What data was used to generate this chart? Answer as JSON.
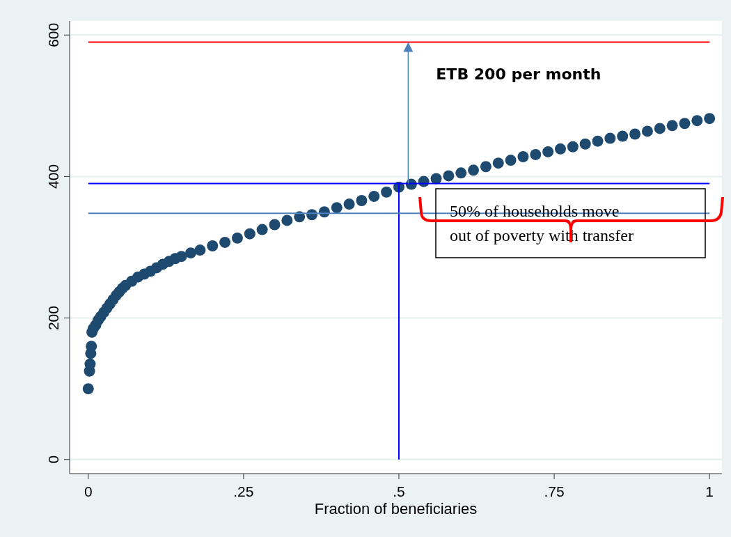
{
  "chart_data": {
    "type": "scatter",
    "xlabel": "Fraction of beneficiaries",
    "x": [
      0,
      0.002,
      0.003,
      0.004,
      0.005,
      0.006,
      0.008,
      0.012,
      0.016,
      0.02,
      0.025,
      0.03,
      0.035,
      0.04,
      0.045,
      0.05,
      0.055,
      0.06,
      0.07,
      0.08,
      0.09,
      0.1,
      0.11,
      0.12,
      0.13,
      0.14,
      0.15,
      0.165,
      0.18,
      0.2,
      0.22,
      0.24,
      0.26,
      0.28,
      0.3,
      0.32,
      0.34,
      0.36,
      0.38,
      0.4,
      0.42,
      0.44,
      0.46,
      0.48,
      0.5,
      0.52,
      0.54,
      0.56,
      0.58,
      0.6,
      0.62,
      0.64,
      0.66,
      0.68,
      0.7,
      0.72,
      0.74,
      0.76,
      0.78,
      0.8,
      0.82,
      0.84,
      0.86,
      0.88,
      0.9,
      0.92,
      0.94,
      0.96,
      0.98,
      1
    ],
    "series": [
      {
        "color": "#1f4a70",
        "values": [
          100,
          125,
          135,
          150,
          160,
          180,
          185,
          190,
          197,
          202,
          208,
          214,
          220,
          226,
          232,
          237,
          242,
          246,
          252,
          258,
          262,
          266,
          271,
          276,
          280,
          284,
          287,
          292,
          296,
          302,
          307,
          313,
          319,
          325,
          332,
          338,
          343,
          346,
          350,
          356,
          361,
          366,
          372,
          378,
          385,
          389,
          393,
          397,
          401,
          405,
          409,
          414,
          419,
          423,
          428,
          431,
          435,
          439,
          442,
          446,
          450,
          454,
          457,
          460,
          464,
          468,
          472,
          475,
          479,
          482
        ]
      }
    ],
    "marker": "circle",
    "xlim": [
      -0.03,
      1.02
    ],
    "ylim": [
      -20,
      620
    ],
    "xticks": [
      0,
      {
        "value": 0.25,
        "label": ".25"
      },
      {
        "value": 0.5,
        "label": ".5"
      },
      {
        "value": 0.75,
        "label": ".75"
      },
      1
    ],
    "yticks": [
      0,
      200,
      400,
      600
    ],
    "grid": "y",
    "ref_lines": [
      {
        "axis": "y",
        "value": 590,
        "color": "#ff0000"
      },
      {
        "axis": "y",
        "value": 390,
        "color": "#0000ff"
      },
      {
        "axis": "x",
        "value": 0.5,
        "color": "#0000ff"
      },
      {
        "axis": "y",
        "value": 348,
        "color": "#4f81bd"
      }
    ],
    "annotations": [
      {
        "text": "ETB 200 per month",
        "x": 0.515,
        "y": 590
      },
      "50% of households move out of poverty with transfer"
    ]
  }
}
